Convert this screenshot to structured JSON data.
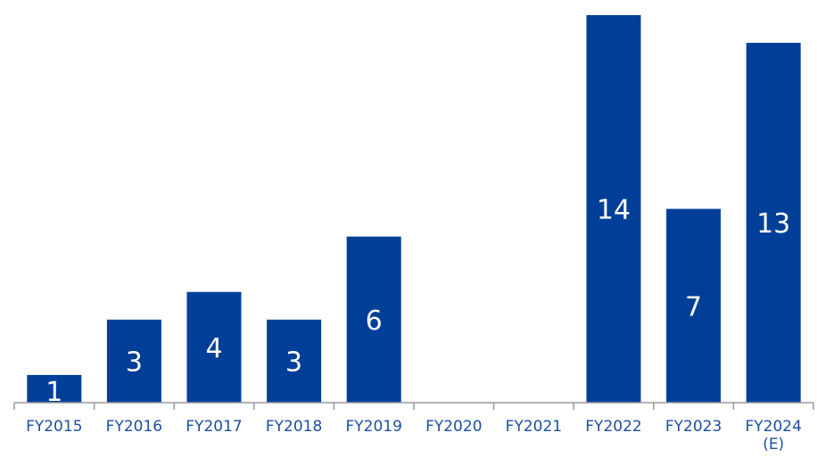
{
  "chart_data": {
    "type": "bar",
    "categories": [
      "FY2015",
      "FY2016",
      "FY2017",
      "FY2018",
      "FY2019",
      "FY2020",
      "FY2021",
      "FY2022",
      "FY2023",
      "FY2024\n(E)"
    ],
    "values": [
      1,
      3,
      4,
      3,
      6,
      0,
      0,
      14,
      7,
      13
    ],
    "data_labels": [
      "1",
      "3",
      "4",
      "3",
      "6",
      "",
      "",
      "14",
      "7",
      "13"
    ],
    "title": "",
    "xlabel": "",
    "ylabel": "",
    "ylim": [
      0,
      14
    ],
    "grid": false,
    "legend": "none",
    "colors": {
      "bar": "#003f98",
      "axis": "#9a9a9a",
      "tick_label": "#1c4fa0",
      "data_label": "#ffffff"
    }
  }
}
